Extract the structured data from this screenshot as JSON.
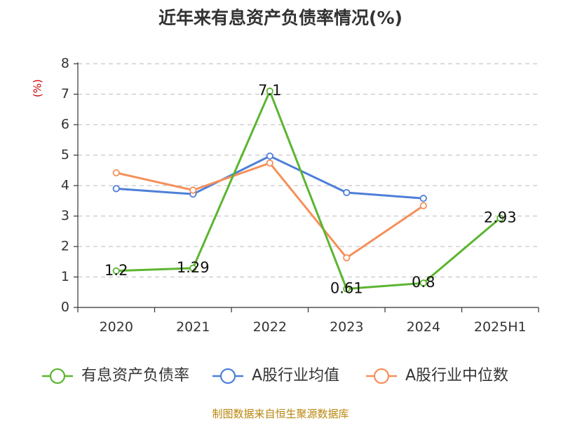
{
  "chart_data": {
    "type": "line",
    "title": "近年来有息资产负债率情况(%)",
    "ylabel": "(%)",
    "xlabel": "",
    "categories": [
      "2020",
      "2021",
      "2022",
      "2023",
      "2024",
      "2025H1"
    ],
    "ylim": [
      0,
      8
    ],
    "yticks": [
      "0",
      "1",
      "2",
      "3",
      "4",
      "5",
      "6",
      "7",
      "8"
    ],
    "grid": true,
    "legend_position": "bottom",
    "series": [
      {
        "name": "有息资产负债率",
        "color": "#5cb531",
        "values": [
          1.2,
          1.29,
          7.1,
          0.61,
          0.8,
          2.93
        ],
        "labels": [
          "1.2",
          "1.29",
          "7.1",
          "0.61",
          "0.8",
          "2.93"
        ]
      },
      {
        "name": "A股行业均值",
        "color": "#4e7fd8",
        "values": [
          3.9,
          3.72,
          4.97,
          3.77,
          3.58,
          null
        ],
        "labels": []
      },
      {
        "name": "A股行业中位数",
        "color": "#f5905a",
        "values": [
          4.42,
          3.85,
          4.74,
          1.63,
          3.34,
          null
        ],
        "labels": []
      }
    ],
    "source": "制图数据来自恒生聚源数据库"
  }
}
